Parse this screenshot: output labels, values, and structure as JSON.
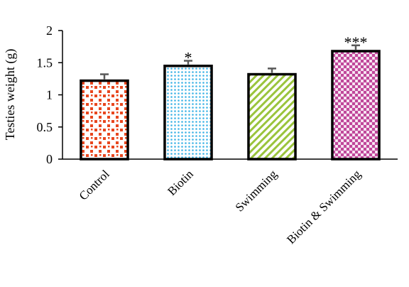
{
  "chart_data": {
    "type": "bar",
    "categories": [
      "Control",
      "Biotin",
      "Swimming",
      "Biotin & Swimming"
    ],
    "values": [
      1.22,
      1.45,
      1.32,
      1.68
    ],
    "errors": [
      0.1,
      0.08,
      0.09,
      0.09
    ],
    "significance": [
      "",
      "*",
      "",
      "***"
    ],
    "ylabel": "Testies weight (g)",
    "xlabel": "",
    "ylim": [
      0,
      2
    ],
    "yticks": [
      0,
      0.5,
      1,
      1.5,
      2
    ],
    "ytick_labels": [
      "0",
      "0.5",
      "1",
      "1.5",
      "2"
    ],
    "grid": false,
    "legend": "none",
    "bar_colors": [
      "#e8461e",
      "#3fb4e6",
      "#9ac43c",
      "#c0479a"
    ],
    "bar_patterns": [
      "squares",
      "dots",
      "diagonal-stripes",
      "checker"
    ],
    "bar_outline_color": "#000000",
    "error_bar_color": "#595959"
  }
}
